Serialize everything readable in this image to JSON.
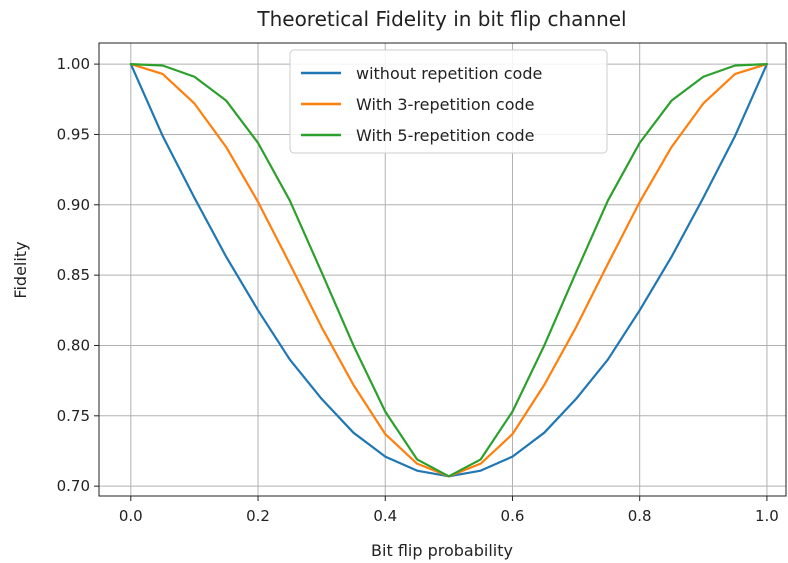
{
  "chart_data": {
    "type": "line",
    "title": "Theoretical Fidelity in bit flip channel",
    "xlabel": "Bit flip probability",
    "ylabel": "Fidelity",
    "xlim": [
      -0.05,
      1.03
    ],
    "ylim": [
      0.693,
      1.015
    ],
    "xticks": [
      0.0,
      0.2,
      0.4,
      0.6,
      0.8,
      1.0
    ],
    "xtick_labels": [
      "0.0",
      "0.2",
      "0.4",
      "0.6",
      "0.8",
      "1.0"
    ],
    "yticks": [
      0.7,
      0.75,
      0.8,
      0.85,
      0.9,
      0.95,
      1.0
    ],
    "ytick_labels": [
      "0.70",
      "0.75",
      "0.80",
      "0.85",
      "0.90",
      "0.95",
      "1.00"
    ],
    "grid": true,
    "legend_position": "top-center",
    "x": [
      0.0,
      0.05,
      0.1,
      0.15,
      0.2,
      0.25,
      0.3,
      0.35,
      0.4,
      0.45,
      0.5,
      0.55,
      0.6,
      0.65,
      0.7,
      0.75,
      0.8,
      0.85,
      0.9,
      0.95,
      1.0
    ],
    "series": [
      {
        "name": "without repetition code",
        "color": "#1f77b4",
        "values": [
          1.0,
          0.949,
          0.905,
          0.863,
          0.825,
          0.79,
          0.762,
          0.738,
          0.721,
          0.711,
          0.707,
          0.711,
          0.721,
          0.738,
          0.762,
          0.79,
          0.825,
          0.863,
          0.905,
          0.949,
          1.0
        ]
      },
      {
        "name": "With 3-repetition code",
        "color": "#ff7f0e",
        "values": [
          1.0,
          0.993,
          0.972,
          0.941,
          0.902,
          0.858,
          0.813,
          0.772,
          0.737,
          0.716,
          0.707,
          0.716,
          0.737,
          0.772,
          0.813,
          0.858,
          0.902,
          0.941,
          0.972,
          0.993,
          1.0
        ]
      },
      {
        "name": "With 5-repetition code",
        "color": "#2ca02c",
        "values": [
          1.0,
          0.999,
          0.991,
          0.974,
          0.944,
          0.903,
          0.852,
          0.8,
          0.753,
          0.719,
          0.707,
          0.719,
          0.753,
          0.8,
          0.852,
          0.903,
          0.944,
          0.974,
          0.991,
          0.999,
          1.0
        ]
      }
    ]
  }
}
